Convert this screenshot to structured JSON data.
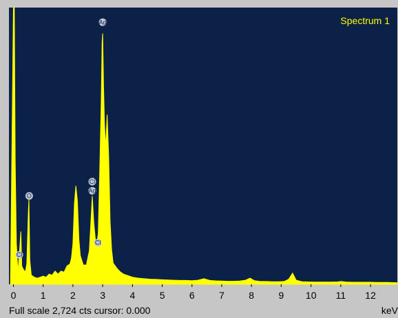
{
  "spectrum_title": "Spectrum 1",
  "status": {
    "full_scale": "Full scale 2,724 cts cursor: 0.000",
    "unit": "keV"
  },
  "colors": {
    "plot_bg": "#0c2147",
    "trace": "#ffff00",
    "frame_bg": "#c6c6c6",
    "label_marker": "#c0c8d6"
  },
  "chart_data": {
    "type": "area",
    "title": "Spectrum 1",
    "xlabel": "keV",
    "ylabel": "",
    "xlim": [
      -0.15,
      12.9
    ],
    "ylim": [
      0,
      2724
    ],
    "x_ticks": [
      0,
      1,
      2,
      3,
      4,
      5,
      6,
      7,
      8,
      9,
      10,
      11,
      12
    ],
    "grid": false,
    "series": [
      {
        "points": [
          [
            -0.1,
            0
          ],
          [
            0.0,
            2724
          ],
          [
            0.03,
            2724
          ],
          [
            0.06,
            1200
          ],
          [
            0.1,
            400
          ],
          [
            0.15,
            120
          ],
          [
            0.2,
            300
          ],
          [
            0.25,
            520
          ],
          [
            0.28,
            180
          ],
          [
            0.33,
            150
          ],
          [
            0.4,
            120
          ],
          [
            0.45,
            200
          ],
          [
            0.5,
            700
          ],
          [
            0.52,
            840
          ],
          [
            0.55,
            240
          ],
          [
            0.6,
            90
          ],
          [
            0.7,
            70
          ],
          [
            0.8,
            60
          ],
          [
            0.9,
            70
          ],
          [
            1.0,
            80
          ],
          [
            1.1,
            70
          ],
          [
            1.2,
            100
          ],
          [
            1.3,
            90
          ],
          [
            1.4,
            130
          ],
          [
            1.5,
            100
          ],
          [
            1.6,
            130
          ],
          [
            1.7,
            120
          ],
          [
            1.8,
            180
          ],
          [
            1.9,
            200
          ],
          [
            1.95,
            260
          ],
          [
            2.0,
            400
          ],
          [
            2.05,
            800
          ],
          [
            2.1,
            970
          ],
          [
            2.15,
            820
          ],
          [
            2.2,
            440
          ],
          [
            2.25,
            280
          ],
          [
            2.35,
            190
          ],
          [
            2.45,
            190
          ],
          [
            2.55,
            330
          ],
          [
            2.62,
            700
          ],
          [
            2.65,
            870
          ],
          [
            2.7,
            610
          ],
          [
            2.78,
            360
          ],
          [
            2.85,
            500
          ],
          [
            2.9,
            1110
          ],
          [
            2.95,
            1800
          ],
          [
            2.98,
            2380
          ],
          [
            3.0,
            2470
          ],
          [
            3.03,
            1950
          ],
          [
            3.06,
            1580
          ],
          [
            3.1,
            1350
          ],
          [
            3.15,
            1670
          ],
          [
            3.2,
            1270
          ],
          [
            3.25,
            620
          ],
          [
            3.3,
            340
          ],
          [
            3.35,
            210
          ],
          [
            3.4,
            190
          ],
          [
            3.5,
            150
          ],
          [
            3.6,
            120
          ],
          [
            3.7,
            100
          ],
          [
            3.8,
            90
          ],
          [
            4.0,
            70
          ],
          [
            4.2,
            60
          ],
          [
            4.4,
            55
          ],
          [
            4.6,
            50
          ],
          [
            4.8,
            48
          ],
          [
            5.0,
            45
          ],
          [
            5.2,
            42
          ],
          [
            5.4,
            40
          ],
          [
            5.6,
            38
          ],
          [
            5.8,
            38
          ],
          [
            6.0,
            36
          ],
          [
            6.2,
            40
          ],
          [
            6.4,
            55
          ],
          [
            6.6,
            38
          ],
          [
            6.8,
            34
          ],
          [
            7.0,
            32
          ],
          [
            7.2,
            30
          ],
          [
            7.4,
            30
          ],
          [
            7.6,
            32
          ],
          [
            7.8,
            40
          ],
          [
            7.95,
            60
          ],
          [
            8.1,
            35
          ],
          [
            8.3,
            28
          ],
          [
            8.5,
            28
          ],
          [
            8.7,
            26
          ],
          [
            8.9,
            26
          ],
          [
            9.1,
            28
          ],
          [
            9.25,
            50
          ],
          [
            9.38,
            110
          ],
          [
            9.5,
            40
          ],
          [
            9.7,
            26
          ],
          [
            9.9,
            24
          ],
          [
            10.1,
            22
          ],
          [
            10.3,
            22
          ],
          [
            10.5,
            22
          ],
          [
            10.7,
            22
          ],
          [
            10.9,
            24
          ],
          [
            11.0,
            28
          ],
          [
            11.2,
            22
          ],
          [
            11.4,
            20
          ],
          [
            11.6,
            20
          ],
          [
            11.8,
            20
          ],
          [
            12.0,
            20
          ],
          [
            12.2,
            18
          ],
          [
            12.4,
            18
          ],
          [
            12.6,
            18
          ],
          [
            12.8,
            16
          ],
          [
            12.9,
            16
          ]
        ]
      }
    ],
    "annotations": [
      {
        "text": "Cl",
        "x": 0.2,
        "y": 290
      },
      {
        "text": "O",
        "x": 0.53,
        "y": 870
      },
      {
        "text": "Cl",
        "x": 2.65,
        "y": 1010
      },
      {
        "text": "Ag",
        "x": 2.65,
        "y": 920
      },
      {
        "text": "Cl",
        "x": 2.84,
        "y": 410
      },
      {
        "text": "Ag",
        "x": 3.0,
        "y": 2580
      }
    ]
  }
}
